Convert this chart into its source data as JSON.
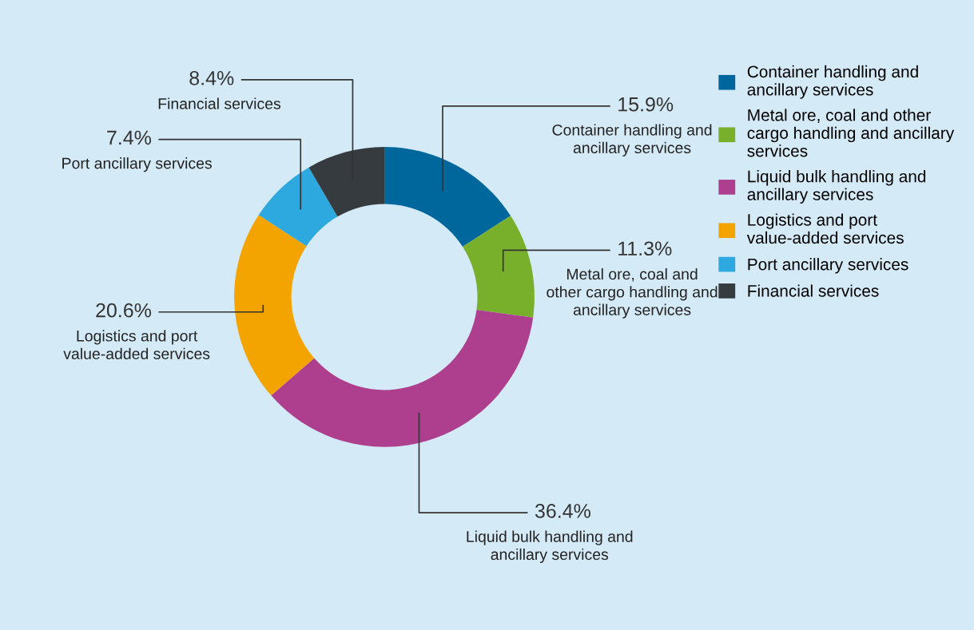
{
  "chart_data": {
    "type": "donut",
    "categories": [
      "Container handling and ancillary services",
      "Metal ore, coal and other cargo handling and ancillary services",
      "Liquid bulk handling and ancillary services",
      "Logistics and port value-added services",
      "Port ancillary services",
      "Financial services"
    ],
    "values": [
      15.9,
      11.3,
      36.4,
      20.6,
      7.4,
      8.4
    ],
    "value_labels": [
      "15.9%",
      "11.3%",
      "36.4%",
      "20.6%",
      "7.4%",
      "8.4%"
    ],
    "colors": [
      "#00679d",
      "#78b02b",
      "#ae3f8e",
      "#f4a400",
      "#2ea9df",
      "#363b40"
    ],
    "legend": "right"
  }
}
